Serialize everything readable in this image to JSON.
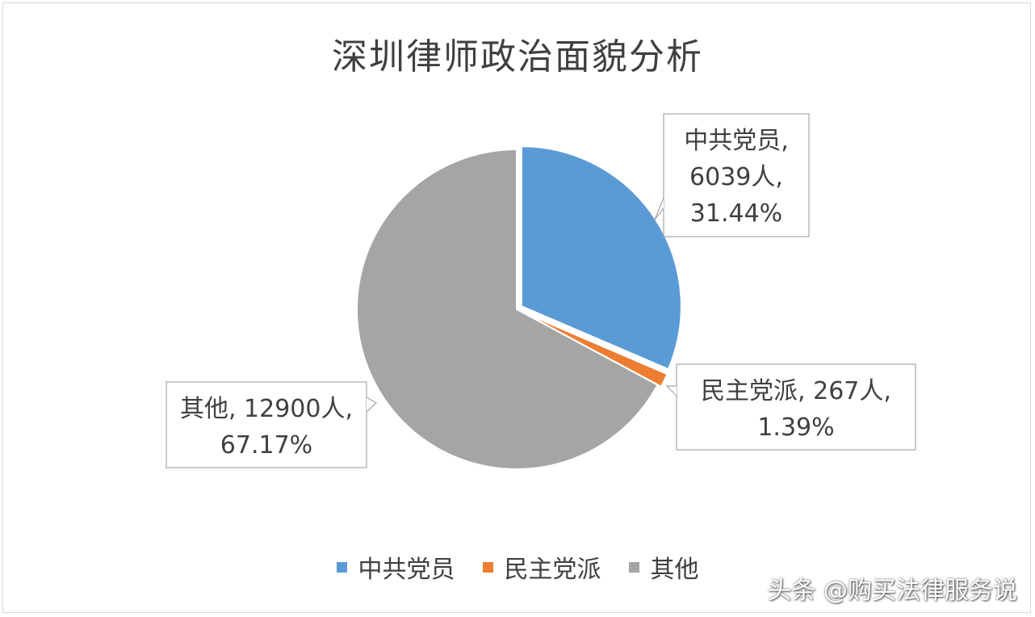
{
  "chart_data": {
    "type": "pie",
    "title": "深圳律师政治面貌分析",
    "categories": [
      "中共党员",
      "民主党派",
      "其他"
    ],
    "values": [
      6039,
      267,
      12900
    ],
    "percents": [
      31.44,
      1.39,
      67.17
    ],
    "colors": [
      "#5b9bd5",
      "#ed7d31",
      "#a5a5a5"
    ],
    "data_labels": [
      [
        "中共党员,",
        "6039人,",
        "31.44%"
      ],
      [
        "民主党派, 267人,",
        "1.39%"
      ],
      [
        "其他, 12900人,",
        "67.17%"
      ]
    ],
    "legend": {
      "position": "bottom"
    }
  },
  "watermark": "头条 @购买法律服务说"
}
